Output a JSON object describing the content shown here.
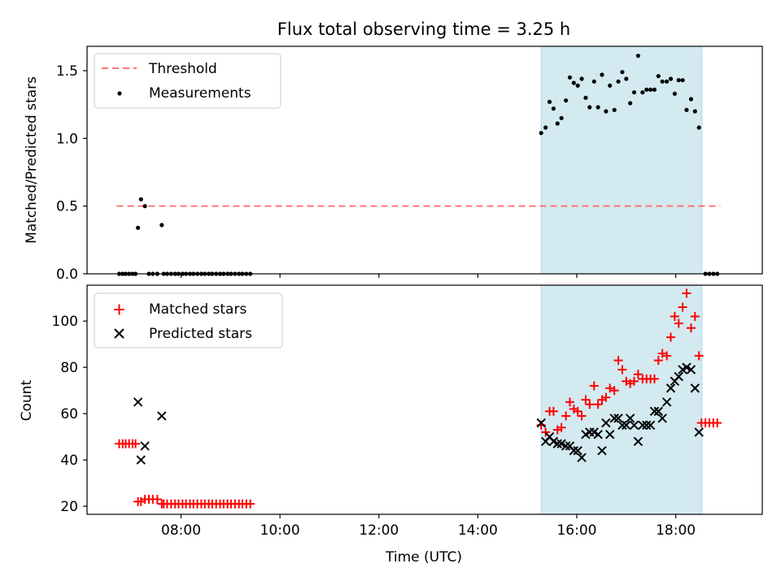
{
  "chart_data": [
    {
      "type": "scatter",
      "title": "Flux total observing time = 3.25 h",
      "xlabel": "",
      "ylabel": "Matched/Predicted stars",
      "xlim": [
        6.1,
        19.75
      ],
      "ylim": [
        0.0,
        1.68
      ],
      "xticks": [
        8,
        10,
        12,
        14,
        16,
        18
      ],
      "xtick_labels_shown": false,
      "yticks": [
        0.0,
        0.5,
        1.0,
        1.5
      ],
      "ytick_labels": [
        "0.0",
        "0.5",
        "1.0",
        "1.5"
      ],
      "shaded_region": {
        "x": [
          15.28,
          18.53
        ],
        "color": "#d3eaf0"
      },
      "legend_location": "upper left",
      "series": [
        {
          "name": "Threshold",
          "kind": "dashed-line",
          "color": "#ff7575",
          "x": [
            6.7,
            18.9
          ],
          "y": [
            0.5,
            0.5
          ]
        },
        {
          "name": "Measurements",
          "kind": "points",
          "color": "#000000",
          "points": [
            [
              6.75,
              0
            ],
            [
              6.82,
              0
            ],
            [
              6.88,
              0
            ],
            [
              6.95,
              0
            ],
            [
              7.02,
              0
            ],
            [
              7.08,
              0
            ],
            [
              7.13,
              0.34
            ],
            [
              7.19,
              0.55
            ],
            [
              7.27,
              0.5
            ],
            [
              7.35,
              0
            ],
            [
              7.43,
              0
            ],
            [
              7.52,
              0
            ],
            [
              7.61,
              0.36
            ],
            [
              7.65,
              0
            ],
            [
              7.72,
              0
            ],
            [
              7.8,
              0
            ],
            [
              7.88,
              0
            ],
            [
              7.95,
              0
            ],
            [
              8.03,
              0
            ],
            [
              8.1,
              0
            ],
            [
              8.18,
              0
            ],
            [
              8.25,
              0
            ],
            [
              8.33,
              0
            ],
            [
              8.41,
              0
            ],
            [
              8.48,
              0
            ],
            [
              8.56,
              0
            ],
            [
              8.63,
              0
            ],
            [
              8.71,
              0
            ],
            [
              8.79,
              0
            ],
            [
              8.86,
              0
            ],
            [
              8.94,
              0
            ],
            [
              9.01,
              0
            ],
            [
              9.09,
              0
            ],
            [
              9.17,
              0
            ],
            [
              9.24,
              0
            ],
            [
              9.32,
              0
            ],
            [
              9.4,
              0
            ],
            [
              15.28,
              1.04
            ],
            [
              15.37,
              1.08
            ],
            [
              15.45,
              1.27
            ],
            [
              15.53,
              1.22
            ],
            [
              15.61,
              1.11
            ],
            [
              15.69,
              1.15
            ],
            [
              15.78,
              1.28
            ],
            [
              15.86,
              1.45
            ],
            [
              15.94,
              1.41
            ],
            [
              16.02,
              1.39
            ],
            [
              16.1,
              1.44
            ],
            [
              16.18,
              1.3
            ],
            [
              16.26,
              1.23
            ],
            [
              16.35,
              1.42
            ],
            [
              16.43,
              1.23
            ],
            [
              16.51,
              1.47
            ],
            [
              16.59,
              1.2
            ],
            [
              16.67,
              1.39
            ],
            [
              16.76,
              1.21
            ],
            [
              16.84,
              1.42
            ],
            [
              16.92,
              1.49
            ],
            [
              17.0,
              1.44
            ],
            [
              17.08,
              1.26
            ],
            [
              17.16,
              1.34
            ],
            [
              17.24,
              1.61
            ],
            [
              17.33,
              1.34
            ],
            [
              17.41,
              1.36
            ],
            [
              17.49,
              1.36
            ],
            [
              17.57,
              1.36
            ],
            [
              17.65,
              1.46
            ],
            [
              17.73,
              1.42
            ],
            [
              17.82,
              1.42
            ],
            [
              17.9,
              1.44
            ],
            [
              17.98,
              1.33
            ],
            [
              18.06,
              1.43
            ],
            [
              18.14,
              1.43
            ],
            [
              18.22,
              1.21
            ],
            [
              18.31,
              1.29
            ],
            [
              18.39,
              1.2
            ],
            [
              18.47,
              1.08
            ],
            [
              18.6,
              0
            ],
            [
              18.68,
              0
            ],
            [
              18.76,
              0
            ],
            [
              18.84,
              0
            ]
          ]
        }
      ]
    },
    {
      "type": "scatter",
      "title": "",
      "xlabel": "Time (UTC)",
      "ylabel": "Count",
      "xlim": [
        6.1,
        19.75
      ],
      "ylim": [
        16.5,
        115.5
      ],
      "xticks": [
        8,
        10,
        12,
        14,
        16,
        18
      ],
      "xtick_labels": [
        "08:00",
        "10:00",
        "12:00",
        "14:00",
        "16:00",
        "18:00"
      ],
      "yticks": [
        20,
        40,
        60,
        80,
        100
      ],
      "ytick_labels": [
        "20",
        "40",
        "60",
        "80",
        "100"
      ],
      "shaded_region": {
        "x": [
          15.28,
          18.53
        ],
        "color": "#d3eaf0"
      },
      "legend_location": "upper left",
      "series": [
        {
          "name": "Matched stars",
          "kind": "plus",
          "color": "#ff0000",
          "points": [
            [
              6.75,
              47
            ],
            [
              6.82,
              47
            ],
            [
              6.88,
              47
            ],
            [
              6.95,
              47
            ],
            [
              7.02,
              47
            ],
            [
              7.08,
              47
            ],
            [
              7.13,
              22
            ],
            [
              7.19,
              22
            ],
            [
              7.27,
              23
            ],
            [
              7.35,
              23
            ],
            [
              7.43,
              23
            ],
            [
              7.52,
              23
            ],
            [
              7.61,
              21
            ],
            [
              7.65,
              21
            ],
            [
              7.72,
              21
            ],
            [
              7.8,
              21
            ],
            [
              7.88,
              21
            ],
            [
              7.95,
              21
            ],
            [
              8.03,
              21
            ],
            [
              8.1,
              21
            ],
            [
              8.18,
              21
            ],
            [
              8.25,
              21
            ],
            [
              8.33,
              21
            ],
            [
              8.41,
              21
            ],
            [
              8.48,
              21
            ],
            [
              8.56,
              21
            ],
            [
              8.63,
              21
            ],
            [
              8.71,
              21
            ],
            [
              8.79,
              21
            ],
            [
              8.86,
              21
            ],
            [
              8.94,
              21
            ],
            [
              9.01,
              21
            ],
            [
              9.09,
              21
            ],
            [
              9.17,
              21
            ],
            [
              9.24,
              21
            ],
            [
              9.32,
              21
            ],
            [
              9.4,
              21
            ],
            [
              15.28,
              55
            ],
            [
              15.37,
              52
            ],
            [
              15.45,
              61
            ],
            [
              15.53,
              61
            ],
            [
              15.61,
              53
            ],
            [
              15.69,
              54
            ],
            [
              15.78,
              59
            ],
            [
              15.86,
              65
            ],
            [
              15.94,
              62
            ],
            [
              16.02,
              61
            ],
            [
              16.1,
              59
            ],
            [
              16.18,
              66
            ],
            [
              16.26,
              64
            ],
            [
              16.35,
              72
            ],
            [
              16.43,
              64
            ],
            [
              16.51,
              66
            ],
            [
              16.59,
              67
            ],
            [
              16.67,
              71
            ],
            [
              16.76,
              70
            ],
            [
              16.84,
              83
            ],
            [
              16.92,
              79
            ],
            [
              17.0,
              74
            ],
            [
              17.08,
              73
            ],
            [
              17.16,
              74
            ],
            [
              17.24,
              77
            ],
            [
              17.33,
              75
            ],
            [
              17.41,
              75
            ],
            [
              17.49,
              75
            ],
            [
              17.57,
              75
            ],
            [
              17.65,
              83
            ],
            [
              17.73,
              86
            ],
            [
              17.82,
              85
            ],
            [
              17.9,
              93
            ],
            [
              17.98,
              102
            ],
            [
              18.06,
              99
            ],
            [
              18.14,
              106
            ],
            [
              18.22,
              112
            ],
            [
              18.31,
              97
            ],
            [
              18.39,
              102
            ],
            [
              18.47,
              85
            ],
            [
              18.52,
              56
            ],
            [
              18.6,
              56
            ],
            [
              18.68,
              56
            ],
            [
              18.76,
              56
            ],
            [
              18.84,
              56
            ]
          ]
        },
        {
          "name": "Predicted stars",
          "kind": "cross",
          "color": "#000000",
          "points": [
            [
              7.13,
              65
            ],
            [
              7.19,
              40
            ],
            [
              7.27,
              46
            ],
            [
              7.61,
              59
            ],
            [
              15.28,
              56
            ],
            [
              15.37,
              48
            ],
            [
              15.45,
              50
            ],
            [
              15.53,
              48
            ],
            [
              15.61,
              47
            ],
            [
              15.69,
              47
            ],
            [
              15.78,
              46
            ],
            [
              15.86,
              46
            ],
            [
              15.94,
              44
            ],
            [
              16.02,
              44
            ],
            [
              16.1,
              41
            ],
            [
              16.18,
              51
            ],
            [
              16.26,
              52
            ],
            [
              16.35,
              52
            ],
            [
              16.43,
              51
            ],
            [
              16.51,
              44
            ],
            [
              16.59,
              56
            ],
            [
              16.67,
              51
            ],
            [
              16.76,
              58
            ],
            [
              16.84,
              58
            ],
            [
              16.92,
              55
            ],
            [
              17.0,
              55
            ],
            [
              17.08,
              58
            ],
            [
              17.16,
              55
            ],
            [
              17.24,
              48
            ],
            [
              17.33,
              55
            ],
            [
              17.41,
              55
            ],
            [
              17.49,
              55
            ],
            [
              17.57,
              61
            ],
            [
              17.65,
              61
            ],
            [
              17.73,
              58
            ],
            [
              17.82,
              65
            ],
            [
              17.9,
              71
            ],
            [
              17.98,
              74
            ],
            [
              18.06,
              76
            ],
            [
              18.14,
              79
            ],
            [
              18.22,
              80
            ],
            [
              18.31,
              79
            ],
            [
              18.39,
              71
            ],
            [
              18.47,
              52
            ]
          ]
        }
      ]
    }
  ]
}
